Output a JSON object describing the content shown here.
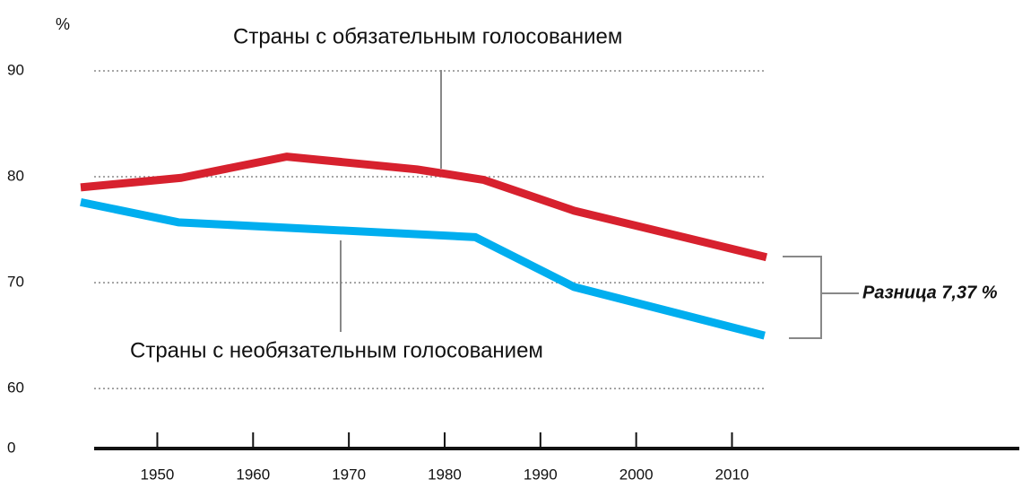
{
  "chart_data": {
    "type": "line",
    "y_unit": "%",
    "baseline_tick": 0,
    "xlim": [
      1942,
      2040
    ],
    "xticks": [
      1950,
      1960,
      1970,
      1980,
      1990,
      2000,
      2010
    ],
    "ylim": [
      54,
      90
    ],
    "yticks": [
      60,
      70,
      80,
      90
    ],
    "grid": true,
    "series": [
      {
        "name": "Страны с обязательным голосованием",
        "color": "#d7212e",
        "x": [
          1942,
          1952.5,
          1963.5,
          1977.1,
          1984.1,
          1993.5,
          2013.6
        ],
        "values": [
          79.0,
          79.9,
          81.9,
          80.7,
          79.7,
          76.8,
          72.4
        ]
      },
      {
        "name": "Страны с необязательным голосованием",
        "color": "#00aeef",
        "x": [
          1942,
          1952.2,
          1983.2,
          1993.5,
          2013.4
        ],
        "values": [
          77.6,
          75.7,
          74.3,
          69.6,
          65.0
        ]
      }
    ],
    "annotation": "Разница 7,37 %"
  }
}
